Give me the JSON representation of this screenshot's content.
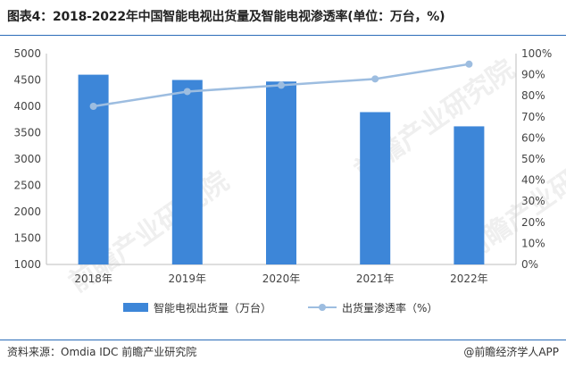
{
  "title": "图表4：2018-2022年中国智能电视出货量及智能电视渗透率(单位：万台，%)",
  "footer": {
    "source": "资料来源：Omdia IDC 前瞻产业研究院",
    "brand": "@前瞻经济学人APP"
  },
  "watermark": "前瞻产业研究院",
  "colors": {
    "bar": "#3d86d8",
    "line": "#9dbde0",
    "rule": "#2b6cb8"
  },
  "chart_data": {
    "type": "bar",
    "categories": [
      "2018年",
      "2019年",
      "2020年",
      "2021年",
      "2022年"
    ],
    "series": [
      {
        "name": "智能电视出货量（万台）",
        "type": "bar",
        "axis": "left",
        "values": [
          4600,
          4500,
          4470,
          3890,
          3620
        ]
      },
      {
        "name": "出货量渗透率（%）",
        "type": "line",
        "axis": "right",
        "values": [
          75,
          82,
          85,
          88,
          95
        ]
      }
    ],
    "y_left": {
      "min": 1000,
      "max": 5000,
      "ticks": [
        "1000",
        "1500",
        "2000",
        "2500",
        "3000",
        "3500",
        "4000",
        "4500",
        "5000"
      ]
    },
    "y_right": {
      "min": 0,
      "max": 100,
      "ticks": [
        "0%",
        "10%",
        "20%",
        "30%",
        "40%",
        "50%",
        "60%",
        "70%",
        "80%",
        "90%",
        "100%"
      ]
    },
    "grid": false,
    "legend": "bottom"
  }
}
